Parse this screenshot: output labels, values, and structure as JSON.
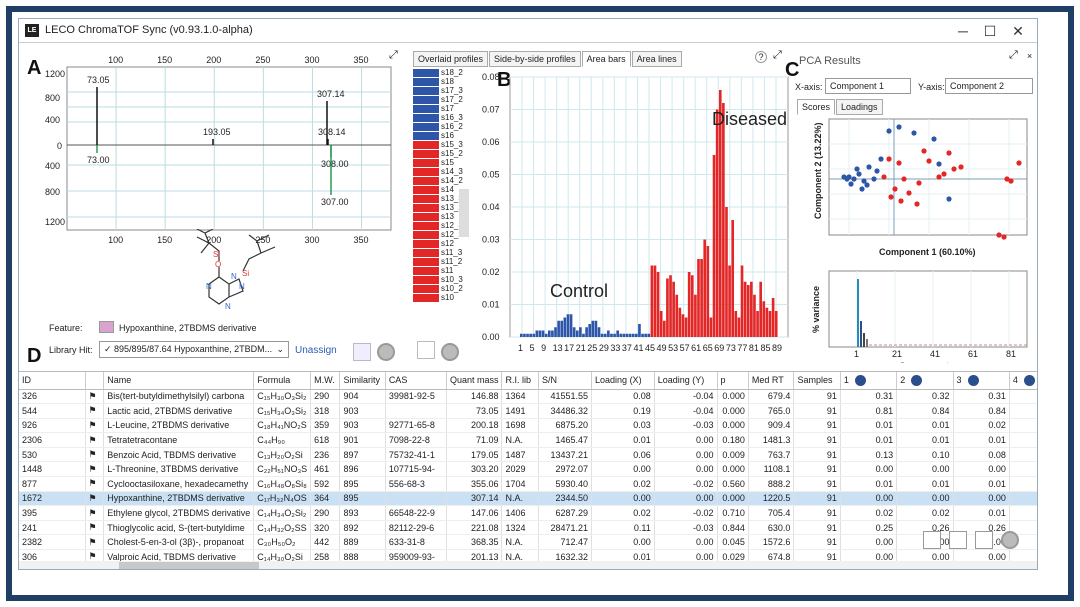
{
  "window": {
    "title": "LECO ChromaTOF Sync (v0.93.1.0-alpha)",
    "min": "─",
    "max": "☐",
    "close": "✕"
  },
  "panels": {
    "a": "A",
    "b": "B",
    "c": "C",
    "d": "D"
  },
  "spectrum": {
    "top_x_ticks": [
      "100",
      "150",
      "200",
      "250",
      "300",
      "350"
    ],
    "bottom_x_ticks": [
      "100",
      "150",
      "200",
      "250",
      "300",
      "350"
    ],
    "top_y_ticks": [
      "400",
      "800",
      "1200"
    ],
    "zero": "0",
    "bottom_y_ticks": [
      "400",
      "800",
      "1200"
    ],
    "peaks_top": [
      {
        "label": "73.05"
      },
      {
        "label": "193.05"
      },
      {
        "label": "307.14"
      },
      {
        "label": "308.14"
      }
    ],
    "peaks_bottom": [
      {
        "label": "73.00"
      },
      {
        "label": "308.00"
      },
      {
        "label": "307.00"
      }
    ]
  },
  "feature": {
    "label": "Feature:",
    "value": "Hypoxanthine, 2TBDMS derivative",
    "swatch_color": "#d9a3cf"
  },
  "library_hit": {
    "label": "Library Hit:",
    "value": "✓ 895/895/87.64  Hypoxanthine, 2TBDM...",
    "unassign": "Unassign"
  },
  "center_tabs": [
    "Overlaid profiles",
    "Side-by-side profiles",
    "Area bars",
    "Area lines"
  ],
  "center_active_tab": "Area bars",
  "samples_legend": [
    {
      "name": "s18_2",
      "group": "blue"
    },
    {
      "name": "s18",
      "group": "blue"
    },
    {
      "name": "s17_3",
      "group": "blue"
    },
    {
      "name": "s17_2",
      "group": "blue"
    },
    {
      "name": "s17",
      "group": "blue"
    },
    {
      "name": "s16_3",
      "group": "blue"
    },
    {
      "name": "s16_2",
      "group": "blue"
    },
    {
      "name": "s16",
      "group": "blue"
    },
    {
      "name": "s15_3",
      "group": "red"
    },
    {
      "name": "s15_2",
      "group": "red"
    },
    {
      "name": "s15",
      "group": "red"
    },
    {
      "name": "s14_3",
      "group": "red"
    },
    {
      "name": "s14_2",
      "group": "red"
    },
    {
      "name": "s14",
      "group": "red"
    },
    {
      "name": "s13_3",
      "group": "red"
    },
    {
      "name": "s13_2",
      "group": "red"
    },
    {
      "name": "s13",
      "group": "red"
    },
    {
      "name": "s12_3",
      "group": "red"
    },
    {
      "name": "s12_2",
      "group": "red"
    },
    {
      "name": "s12",
      "group": "red"
    },
    {
      "name": "s11_3",
      "group": "red"
    },
    {
      "name": "s11_2",
      "group": "red"
    },
    {
      "name": "s11",
      "group": "red"
    },
    {
      "name": "s10_3",
      "group": "red"
    },
    {
      "name": "s10_2",
      "group": "red"
    },
    {
      "name": "s10",
      "group": "red"
    }
  ],
  "colors": {
    "blue": "#2d55a8",
    "red": "#e32626",
    "accent": "#1f3f66",
    "selected_row": "#c9e0f5"
  },
  "chart_data": {
    "type": "bar",
    "ylim": [
      0,
      0.08
    ],
    "y_ticks": [
      "0.00",
      "0.01",
      "0.02",
      "0.03",
      "0.04",
      "0.05",
      "0.06",
      "0.07",
      "0.08"
    ],
    "x_ticks": [
      "1",
      "5",
      "9",
      "13",
      "17",
      "21",
      "25",
      "29",
      "33",
      "37",
      "41",
      "45",
      "49",
      "53",
      "57",
      "61",
      "65",
      "69",
      "73",
      "77",
      "81",
      "85",
      "89"
    ],
    "annotations": [
      "Control",
      "Diseased"
    ],
    "series": [
      {
        "name": "Control",
        "color": "#2d55a8",
        "values": [
          0.001,
          0.001,
          0.001,
          0.001,
          0.001,
          0.002,
          0.002,
          0.002,
          0.001,
          0.002,
          0.002,
          0.003,
          0.005,
          0.005,
          0.006,
          0.007,
          0.007,
          0.003,
          0.002,
          0.003,
          0.001,
          0.003,
          0.004,
          0.005,
          0.005,
          0.003,
          0.001,
          0.001,
          0.002,
          0.001,
          0.001,
          0.002,
          0.001,
          0.001,
          0.001,
          0.001,
          0.001,
          0.001,
          0.004,
          0.001,
          0.001,
          0.001
        ]
      },
      {
        "name": "Diseased",
        "color": "#e32626",
        "values": [
          0.022,
          0.022,
          0.02,
          0.008,
          0.005,
          0.018,
          0.019,
          0.017,
          0.013,
          0.009,
          0.007,
          0.006,
          0.02,
          0.019,
          0.013,
          0.024,
          0.024,
          0.03,
          0.028,
          0.006,
          0.056,
          0.07,
          0.076,
          0.072,
          0.04,
          0.022,
          0.036,
          0.008,
          0.006,
          0.022,
          0.017,
          0.016,
          0.017,
          0.013,
          0.008,
          0.017,
          0.011,
          0.009,
          0.008,
          0.012,
          0.008
        ]
      }
    ]
  },
  "pca": {
    "title": "PCA Results",
    "xaxis_label": "X-axis:",
    "xaxis_value": "Component 1",
    "yaxis_label": "Y-axis:",
    "yaxis_value": "Component 2",
    "tabs": [
      "Scores",
      "Loadings"
    ],
    "scores_xlabel": "Component 1 (60.10%)",
    "scores_ylabel": "Component 2 (13.22%)",
    "variance_ylabel": "% variance",
    "variance_xlabel": "Component",
    "variance_ticks": [
      "1",
      "21",
      "41",
      "61",
      "81"
    ]
  },
  "table": {
    "columns": [
      "ID",
      "",
      "Name",
      "Formula",
      "M.W.",
      "Similarity",
      "CAS",
      "Quant mass",
      "R.I. lib",
      "S/N",
      "Loading (X)",
      "Loading (Y)",
      "p",
      "Med RT",
      "Samples",
      "1",
      "2",
      "3",
      "4"
    ],
    "rows": [
      [
        "326",
        "⚑",
        "Bis(tert-butyldimethylsilyl) carbona",
        "C₁₅H₃₀O₃Si₂",
        "290",
        "904",
        "39981-92-5",
        "146.88",
        "1364",
        "41551.55",
        "0.08",
        "-0.04",
        "0.000",
        "679.4",
        "91",
        "0.31",
        "0.32",
        "0.31"
      ],
      [
        "544",
        "⚑",
        "Lactic acid, 2TBDMS derivative",
        "C₁₅H₃₄O₃Si₂",
        "318",
        "903",
        "",
        "73.05",
        "1491",
        "34486.32",
        "0.19",
        "-0.04",
        "0.000",
        "765.0",
        "91",
        "0.81",
        "0.84",
        "0.84"
      ],
      [
        "926",
        "⚑",
        "L-Leucine, 2TBDMS derivative",
        "C₁₈H₄₁NO₂S",
        "359",
        "903",
        "92771-65-8",
        "200.18",
        "1698",
        "6875.20",
        "0.03",
        "-0.03",
        "0.000",
        "909.4",
        "91",
        "0.01",
        "0.01",
        "0.02"
      ],
      [
        "2306",
        "⚑",
        "Tetratetracontane",
        "C₄₄H₉₀",
        "618",
        "901",
        "7098-22-8",
        "71.09",
        "N.A.",
        "1465.47",
        "0.01",
        "0.00",
        "0.180",
        "1481.3",
        "91",
        "0.01",
        "0.01",
        "0.01"
      ],
      [
        "530",
        "⚑",
        "Benzoic Acid, TBDMS derivative",
        "C₁₃H₂₀O₂Si",
        "236",
        "897",
        "75732-41-1",
        "179.05",
        "1487",
        "13437.21",
        "0.06",
        "0.00",
        "0.009",
        "763.7",
        "91",
        "0.13",
        "0.10",
        "0.08"
      ],
      [
        "1448",
        "⚑",
        "L-Threonine, 3TBDMS derivative",
        "C₂₂H₅₁NO₃S",
        "461",
        "896",
        "107715-94-",
        "303.20",
        "2029",
        "2972.07",
        "0.00",
        "0.00",
        "0.000",
        "1108.1",
        "91",
        "0.00",
        "0.00",
        "0.00"
      ],
      [
        "877",
        "⚑",
        "Cyclooctasiloxane, hexadecamethy",
        "C₁₆H₄₈O₈Si₈",
        "592",
        "895",
        "556-68-3",
        "355.06",
        "1704",
        "5930.40",
        "0.02",
        "-0.02",
        "0.560",
        "888.2",
        "91",
        "0.01",
        "0.01",
        "0.01"
      ],
      [
        "1672",
        "⚑",
        "Hypoxanthine, 2TBDMS derivative",
        "C₁₇H₃₂N₄OS",
        "364",
        "895",
        "",
        "307.14",
        "N.A.",
        "2344.50",
        "0.00",
        "0.00",
        "0.000",
        "1220.5",
        "91",
        "0.00",
        "0.00",
        "0.00"
      ],
      [
        "395",
        "⚑",
        "Ethylene glycol, 2TBDMS derivative",
        "C₁₄H₃₄O₂Si₂",
        "290",
        "893",
        "66548-22-9",
        "147.06",
        "1406",
        "6287.29",
        "0.02",
        "-0.02",
        "0.710",
        "705.4",
        "91",
        "0.02",
        "0.02",
        "0.01"
      ],
      [
        "241",
        "⚑",
        "Thioglycolic acid, S-(tert-butyldime",
        "C₁₄H₃₂O₂SS",
        "320",
        "892",
        "82112-29-6",
        "221.08",
        "1324",
        "28471.21",
        "0.11",
        "-0.03",
        "0.844",
        "630.0",
        "91",
        "0.25",
        "0.26",
        "0.26"
      ],
      [
        "2382",
        "⚑",
        "Cholest-5-en-3-ol (3β)-, propanoat",
        "C₃₀H₅₀O₂",
        "442",
        "889",
        "633-31-8",
        "368.35",
        "N.A.",
        "712.47",
        "0.00",
        "0.00",
        "0.045",
        "1572.6",
        "91",
        "0.00",
        "0.00",
        "0.00"
      ],
      [
        "306",
        "⚑",
        "Valproic Acid, TBDMS derivative",
        "C₁₄H₃₀O₂Si",
        "258",
        "888",
        "959009-93-",
        "201.13",
        "N.A.",
        "1632.32",
        "0.01",
        "0.00",
        "0.029",
        "674.8",
        "91",
        "0.00",
        "0.00",
        "0.00"
      ]
    ],
    "selected_row": 7
  }
}
